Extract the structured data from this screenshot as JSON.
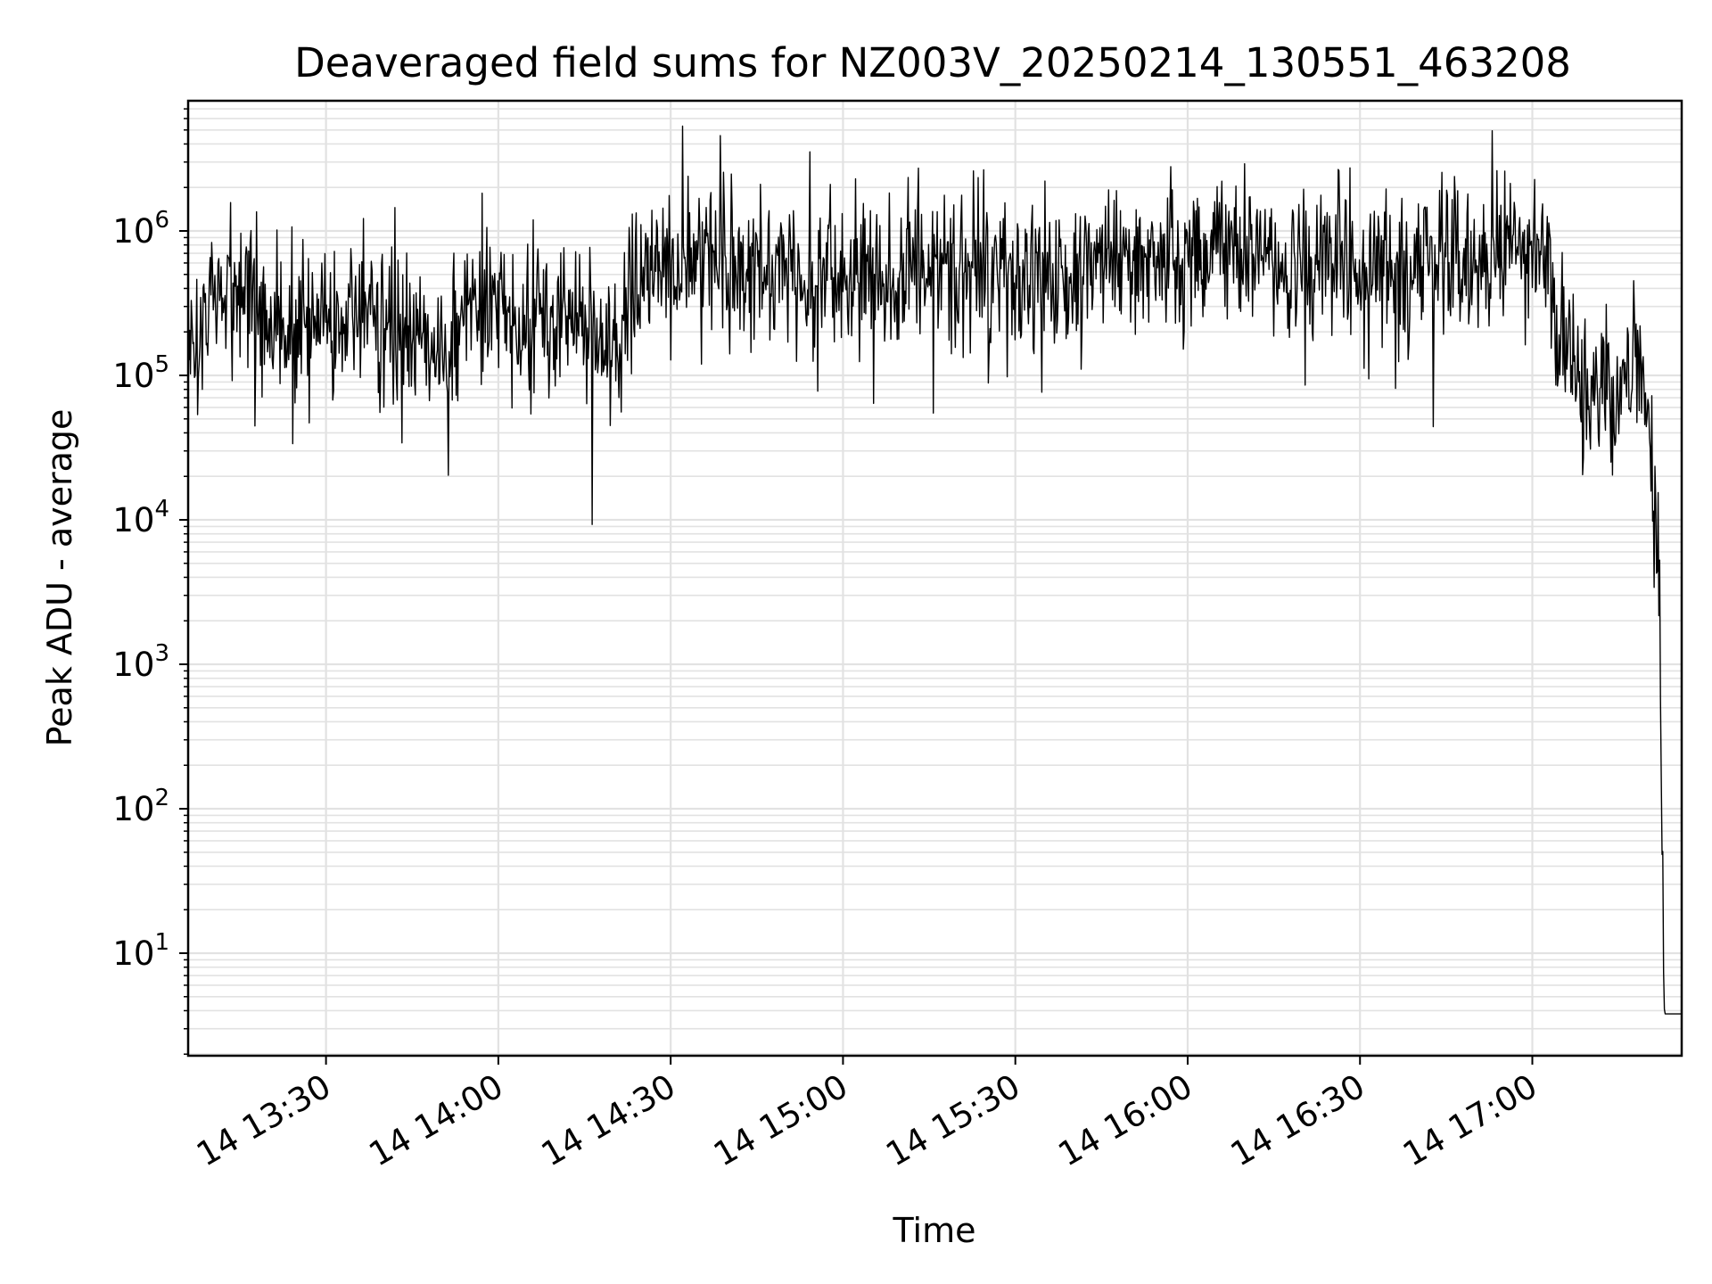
{
  "chart_data": {
    "type": "line",
    "title": "Deaveraged field sums for NZ003V_20250214_130551_463208",
    "xlabel": "Time",
    "ylabel": "Peak ADU - average",
    "yscale": "log",
    "grid": true,
    "line_color": "#000000",
    "grid_color": "#e2e2e2",
    "xlim": [
      "2025-02-14 13:06",
      "2025-02-14 17:26"
    ],
    "ylim": [
      1.85,
      8000000
    ],
    "x_ticks": [
      "14 13:30",
      "14 14:00",
      "14 14:30",
      "14 15:00",
      "14 15:30",
      "14 16:00",
      "14 16:30",
      "14 17:00"
    ],
    "y_ticks": [
      {
        "base": "10",
        "exp": "1"
      },
      {
        "base": "10",
        "exp": "2"
      },
      {
        "base": "10",
        "exp": "3"
      },
      {
        "base": "10",
        "exp": "4"
      },
      {
        "base": "10",
        "exp": "5"
      },
      {
        "base": "10",
        "exp": "6"
      }
    ],
    "series": [
      {
        "x": [
          "13:06",
          "13:10",
          "13:15",
          "13:20",
          "13:25",
          "13:30",
          "13:35",
          "13:40",
          "13:45",
          "13:50",
          "13:55",
          "14:00",
          "14:05",
          "14:10",
          "14:15",
          "14:20",
          "14:25",
          "14:30",
          "14:35",
          "14:40",
          "14:45",
          "14:50",
          "14:55",
          "15:00",
          "15:05",
          "15:10",
          "15:15",
          "15:20",
          "15:25",
          "15:30",
          "15:35",
          "15:40",
          "15:45",
          "15:50",
          "15:55",
          "16:00",
          "16:05",
          "16:10",
          "16:15",
          "16:20",
          "16:25",
          "16:30",
          "16:35",
          "16:40",
          "16:45",
          "16:50",
          "16:55",
          "17:00",
          "17:03",
          "17:06",
          "17:09",
          "17:12",
          "17:15",
          "17:18",
          "17:20",
          "17:21",
          "17:22",
          "17:23",
          "17:24",
          "17:25",
          "17:26"
        ],
        "y": [
          150000,
          300000,
          400000,
          250000,
          200000,
          300000,
          250000,
          200000,
          150000,
          120000,
          250000,
          300000,
          200000,
          250000,
          200000,
          180000,
          400000,
          550000,
          600000,
          500000,
          550000,
          600000,
          500000,
          550000,
          500000,
          450000,
          600000,
          550000,
          500000,
          600000,
          500000,
          550000,
          600000,
          700000,
          650000,
          700000,
          800000,
          700000,
          650000,
          550000,
          600000,
          550000,
          500000,
          600000,
          550000,
          600000,
          700000,
          800000,
          500000,
          150000,
          70000,
          100000,
          80000,
          150000,
          70000,
          20000,
          5000,
          3.8,
          3.8,
          3.8,
          3.8
        ]
      }
    ]
  }
}
